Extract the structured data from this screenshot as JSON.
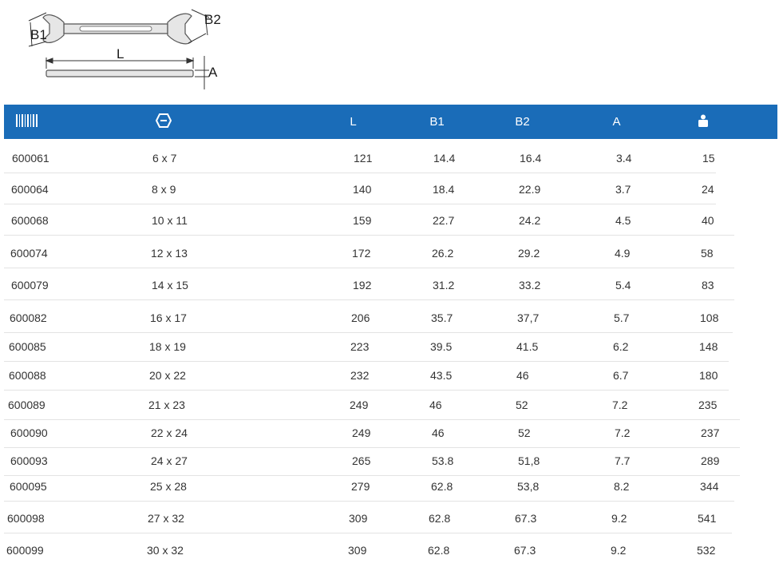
{
  "diagram": {
    "labels": {
      "b1": "B1",
      "b2": "B2",
      "length": "L",
      "a": "A"
    }
  },
  "table": {
    "header_color": "#1a6cb8",
    "columns": [
      {
        "key": "code",
        "label": "",
        "icon": "barcode-icon"
      },
      {
        "key": "size",
        "label": "",
        "icon": "hexagon-nut-icon"
      },
      {
        "key": "l",
        "label": "L"
      },
      {
        "key": "b1",
        "label": "B1"
      },
      {
        "key": "b2",
        "label": "B2"
      },
      {
        "key": "a",
        "label": "A"
      },
      {
        "key": "weight",
        "label": "",
        "icon": "weight-icon"
      }
    ],
    "rows": [
      {
        "code": "600061",
        "size": "6 x 7",
        "l": "121",
        "b1": "14.4",
        "b2": "16.4",
        "a": "3.4",
        "weight": "15"
      },
      {
        "code": "600064",
        "size": "8 x 9",
        "l": "140",
        "b1": "18.4",
        "b2": "22.9",
        "a": "3.7",
        "weight": "24"
      },
      {
        "code": "600068",
        "size": "10 x 11",
        "l": "159",
        "b1": "22.7",
        "b2": "24.2",
        "a": "4.5",
        "weight": "40"
      },
      {
        "code": "600074",
        "size": "12 x 13",
        "l": "172",
        "b1": "26.2",
        "b2": "29.2",
        "a": "4.9",
        "weight": "58"
      },
      {
        "code": "600079",
        "size": "14 x 15",
        "l": "192",
        "b1": "31.2",
        "b2": "33.2",
        "a": "5.4",
        "weight": "83"
      },
      {
        "code": "600082",
        "size": "16 x 17",
        "l": "206",
        "b1": "35.7",
        "b2": "37,7",
        "a": "5.7",
        "weight": "108"
      },
      {
        "code": "600085",
        "size": "18 x 19",
        "l": "223",
        "b1": "39.5",
        "b2": "41.5",
        "a": "6.2",
        "weight": "148"
      },
      {
        "code": "600088",
        "size": "20 x 22",
        "l": "232",
        "b1": "43.5",
        "b2": "46",
        "a": "6.7",
        "weight": "180"
      },
      {
        "code": "600089",
        "size": "21 x 23",
        "l": "249",
        "b1": "46",
        "b2": "52",
        "a": "7.2",
        "weight": "235"
      },
      {
        "code": "600090",
        "size": "22 x 24",
        "l": "249",
        "b1": "46",
        "b2": "52",
        "a": "7.2",
        "weight": "237"
      },
      {
        "code": "600093",
        "size": "24 x 27",
        "l": "265",
        "b1": "53.8",
        "b2": "51,8",
        "a": "7.7",
        "weight": "289"
      },
      {
        "code": "600095",
        "size": "25 x 28",
        "l": "279",
        "b1": "62.8",
        "b2": "53,8",
        "a": "8.2",
        "weight": "344"
      },
      {
        "code": "600098",
        "size": "27 x 32",
        "l": "309",
        "b1": "62.8",
        "b2": "67.3",
        "a": "9.2",
        "weight": "541"
      },
      {
        "code": "600099",
        "size": "30 x 32",
        "l": "309",
        "b1": "62.8",
        "b2": "67.3",
        "a": "9.2",
        "weight": "532"
      }
    ]
  }
}
